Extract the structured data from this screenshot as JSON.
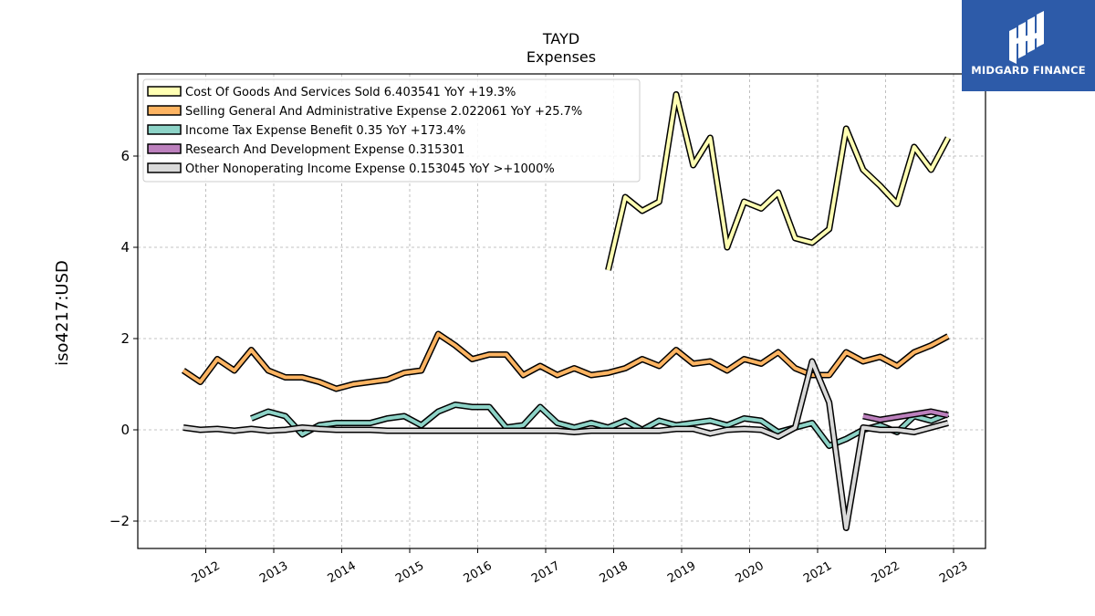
{
  "chart_data": {
    "type": "line",
    "title": "TAYD",
    "subtitle": "Expenses",
    "ylabel": "iso4217:USD",
    "xlabel": "",
    "ylim": [
      -2.6,
      7.8
    ],
    "xlim": [
      2011.0,
      2023.47
    ],
    "yticks": [
      -2,
      0,
      2,
      4,
      6
    ],
    "ytick_labels": [
      "−2",
      "0",
      "2",
      "4",
      "6"
    ],
    "xticks": [
      2012,
      2013,
      2014,
      2015,
      2016,
      2017,
      2018,
      2019,
      2020,
      2021,
      2022,
      2023
    ],
    "xtick_labels": [
      "2012",
      "2013",
      "2014",
      "2015",
      "2016",
      "2017",
      "2018",
      "2019",
      "2020",
      "2021",
      "2022",
      "2023"
    ],
    "grid": true,
    "legend_position": "top-left",
    "series": [
      {
        "name": "Cost Of Goods And Services Sold",
        "legend": "Cost Of Goods And Services Sold  6.403541 YoY +19.3%",
        "color": "#ffffb3",
        "x": [
          2017.92,
          2018.17,
          2018.42,
          2018.67,
          2018.92,
          2019.17,
          2019.42,
          2019.67,
          2019.92,
          2020.17,
          2020.42,
          2020.67,
          2020.92,
          2021.17,
          2021.42,
          2021.67,
          2021.92,
          2022.17,
          2022.42,
          2022.67,
          2022.92
        ],
        "y": [
          3.5,
          5.1,
          4.8,
          5.0,
          7.35,
          5.8,
          6.4,
          4.0,
          5.0,
          4.85,
          5.2,
          4.2,
          4.1,
          4.4,
          6.6,
          5.7,
          5.35,
          4.95,
          6.2,
          5.7,
          6.4
        ]
      },
      {
        "name": "Selling General And Administrative Expense",
        "legend": "Selling General And Administrative Expense  2.022061 YoY +25.7%",
        "color": "#fdb462",
        "x": [
          2011.67,
          2011.92,
          2012.17,
          2012.42,
          2012.67,
          2012.92,
          2013.17,
          2013.42,
          2013.67,
          2013.92,
          2014.17,
          2014.42,
          2014.67,
          2014.92,
          2015.17,
          2015.42,
          2015.67,
          2015.92,
          2016.17,
          2016.42,
          2016.67,
          2016.92,
          2017.17,
          2017.42,
          2017.67,
          2017.92,
          2018.17,
          2018.42,
          2018.67,
          2018.92,
          2019.17,
          2019.42,
          2019.67,
          2019.92,
          2020.17,
          2020.42,
          2020.67,
          2020.92,
          2021.17,
          2021.42,
          2021.67,
          2021.92,
          2022.17,
          2022.42,
          2022.67,
          2022.92
        ],
        "y": [
          1.3,
          1.05,
          1.55,
          1.3,
          1.75,
          1.3,
          1.15,
          1.15,
          1.05,
          0.9,
          1.0,
          1.05,
          1.1,
          1.25,
          1.3,
          2.1,
          1.85,
          1.55,
          1.65,
          1.65,
          1.2,
          1.4,
          1.2,
          1.35,
          1.2,
          1.25,
          1.35,
          1.55,
          1.4,
          1.75,
          1.45,
          1.5,
          1.3,
          1.55,
          1.45,
          1.7,
          1.35,
          1.2,
          1.2,
          1.7,
          1.5,
          1.6,
          1.4,
          1.7,
          1.85,
          2.05
        ]
      },
      {
        "name": "Income Tax Expense Benefit",
        "legend": "Income Tax Expense Benefit  0.35 YoY +173.4%",
        "color": "#8dd3c7",
        "x": [
          2012.67,
          2012.92,
          2013.17,
          2013.42,
          2013.67,
          2013.92,
          2014.17,
          2014.42,
          2014.67,
          2014.92,
          2015.17,
          2015.42,
          2015.67,
          2015.92,
          2016.17,
          2016.42,
          2016.67,
          2016.92,
          2017.17,
          2017.42,
          2017.67,
          2017.92,
          2018.17,
          2018.42,
          2018.67,
          2018.92,
          2019.17,
          2019.42,
          2019.67,
          2019.92,
          2020.17,
          2020.42,
          2020.67,
          2020.92,
          2021.17,
          2021.42,
          2021.67,
          2021.92,
          2022.17,
          2022.42,
          2022.67,
          2022.92
        ],
        "y": [
          0.25,
          0.4,
          0.3,
          -0.1,
          0.1,
          0.15,
          0.15,
          0.15,
          0.25,
          0.3,
          0.1,
          0.4,
          0.55,
          0.5,
          0.5,
          0.05,
          0.1,
          0.5,
          0.15,
          0.05,
          0.15,
          0.05,
          0.2,
          0.0,
          0.2,
          0.1,
          0.15,
          0.2,
          0.1,
          0.25,
          0.2,
          -0.05,
          0.05,
          0.15,
          -0.35,
          -0.2,
          0.0,
          0.1,
          -0.05,
          0.3,
          0.2,
          0.35
        ]
      },
      {
        "name": "Research And Development Expense",
        "legend": "Research And Development Expense  0.315301",
        "color": "#bc80bd",
        "x": [
          2021.67,
          2021.92,
          2022.17,
          2022.42,
          2022.67,
          2022.92
        ],
        "y": [
          0.3,
          0.22,
          0.28,
          0.34,
          0.4,
          0.32
        ]
      },
      {
        "name": "Other Nonoperating Income Expense",
        "legend": "Other Nonoperating Income Expense  0.153045 YoY >+1000%",
        "color": "#d9d9d9",
        "x": [
          2011.67,
          2011.92,
          2012.17,
          2012.42,
          2012.67,
          2012.92,
          2013.17,
          2013.42,
          2013.67,
          2013.92,
          2014.17,
          2014.42,
          2014.67,
          2014.92,
          2015.17,
          2015.42,
          2015.67,
          2015.92,
          2016.17,
          2016.42,
          2016.67,
          2016.92,
          2017.17,
          2017.42,
          2017.67,
          2017.92,
          2018.17,
          2018.42,
          2018.67,
          2018.92,
          2019.17,
          2019.42,
          2019.67,
          2019.92,
          2020.17,
          2020.42,
          2020.67,
          2020.92,
          2021.17,
          2021.42,
          2021.67,
          2021.92,
          2022.17,
          2022.42,
          2022.67,
          2022.92
        ],
        "y": [
          0.05,
          0.0,
          0.02,
          -0.02,
          0.02,
          -0.02,
          0.0,
          0.05,
          0.02,
          0.0,
          0.0,
          0.0,
          -0.02,
          -0.02,
          -0.02,
          -0.02,
          -0.02,
          -0.02,
          -0.02,
          -0.02,
          -0.02,
          -0.02,
          -0.02,
          -0.05,
          -0.02,
          -0.02,
          -0.02,
          -0.02,
          -0.02,
          0.02,
          0.02,
          -0.08,
          0.0,
          0.02,
          0.0,
          -0.15,
          0.05,
          1.5,
          0.6,
          -2.15,
          0.05,
          0.0,
          0.0,
          -0.05,
          0.05,
          0.15
        ]
      }
    ]
  },
  "logo": {
    "brand": "MIDGARD FINANCE",
    "background": "#2d5ba9"
  }
}
